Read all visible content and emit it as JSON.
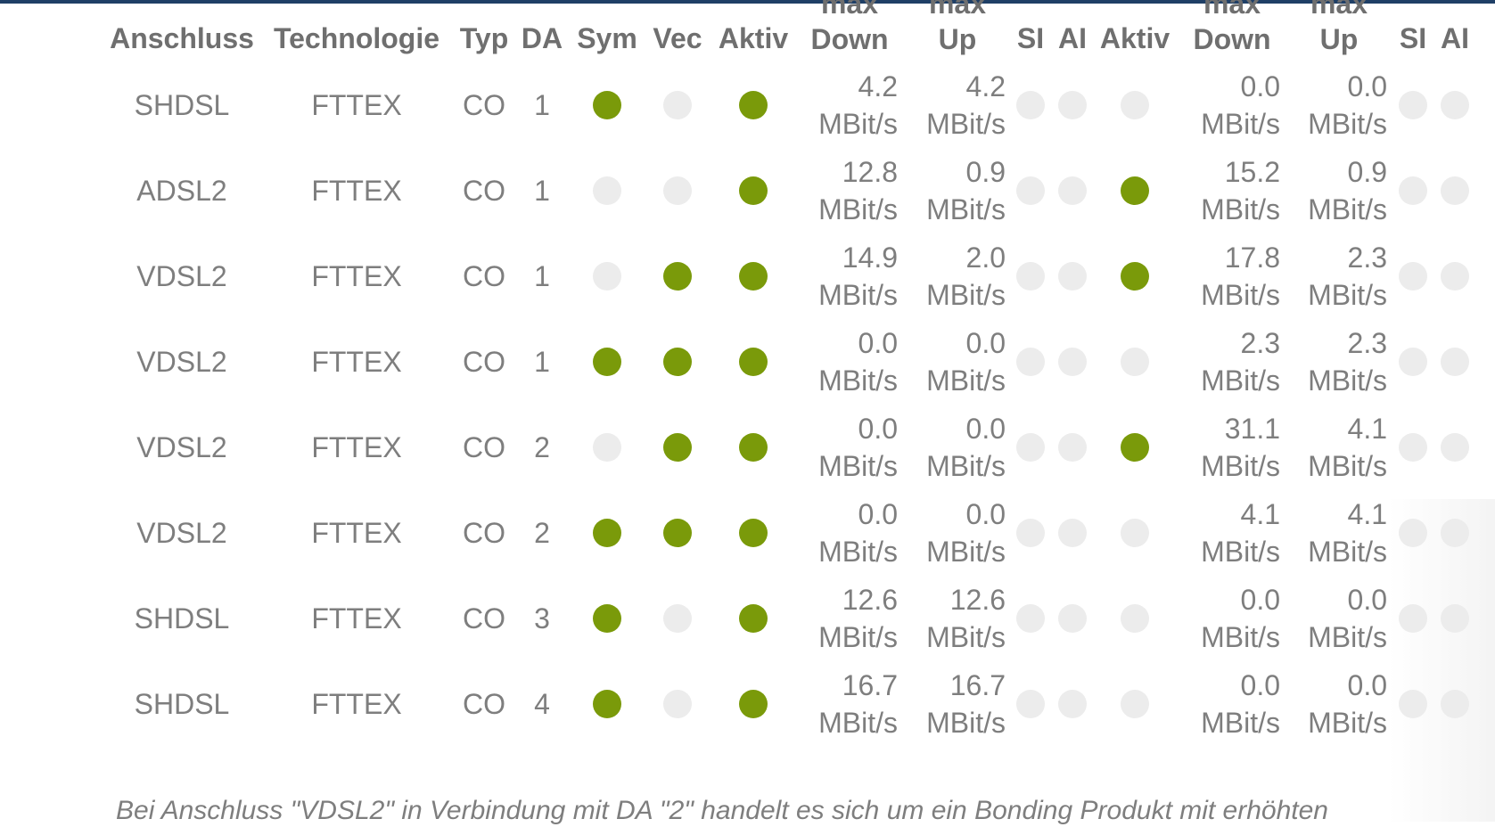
{
  "colors": {
    "active": "#7a9a0a",
    "inactive": "#ececec"
  },
  "headers": {
    "anschluss": "Anschluss",
    "technologie": "Technologie",
    "typ": "Typ",
    "da": "DA",
    "sym": "Sym",
    "vec": "Vec",
    "aktiv1": "Aktiv",
    "max_down1": [
      "max",
      "Down"
    ],
    "max_up1": [
      "max",
      "Up"
    ],
    "si1": "SI",
    "ai1": "AI",
    "aktiv2": "Aktiv",
    "max_down2": [
      "max",
      "Down"
    ],
    "max_up2": [
      "max",
      "Up"
    ],
    "si2": "SI",
    "ai2": "AI"
  },
  "rows": [
    {
      "anschluss": "SHDSL",
      "technologie": "FTTEX",
      "typ": "CO",
      "da": "1",
      "sym": true,
      "vec": false,
      "aktiv": true,
      "down1": "4.2",
      "up1": "4.2",
      "si1": false,
      "ai1": false,
      "aktiv2": false,
      "down2": "0.0",
      "up2": "0.0",
      "si2": false,
      "ai2": false
    },
    {
      "anschluss": "ADSL2",
      "technologie": "FTTEX",
      "typ": "CO",
      "da": "1",
      "sym": false,
      "vec": false,
      "aktiv": true,
      "down1": "12.8",
      "up1": "0.9",
      "si1": false,
      "ai1": false,
      "aktiv2": true,
      "down2": "15.2",
      "up2": "0.9",
      "si2": false,
      "ai2": false
    },
    {
      "anschluss": "VDSL2",
      "technologie": "FTTEX",
      "typ": "CO",
      "da": "1",
      "sym": false,
      "vec": true,
      "aktiv": true,
      "down1": "14.9",
      "up1": "2.0",
      "si1": false,
      "ai1": false,
      "aktiv2": true,
      "down2": "17.8",
      "up2": "2.3",
      "si2": false,
      "ai2": false
    },
    {
      "anschluss": "VDSL2",
      "technologie": "FTTEX",
      "typ": "CO",
      "da": "1",
      "sym": true,
      "vec": true,
      "aktiv": true,
      "down1": "0.0",
      "up1": "0.0",
      "si1": false,
      "ai1": false,
      "aktiv2": false,
      "down2": "2.3",
      "up2": "2.3",
      "si2": false,
      "ai2": false
    },
    {
      "anschluss": "VDSL2",
      "technologie": "FTTEX",
      "typ": "CO",
      "da": "2",
      "sym": false,
      "vec": true,
      "aktiv": true,
      "down1": "0.0",
      "up1": "0.0",
      "si1": false,
      "ai1": false,
      "aktiv2": true,
      "down2": "31.1",
      "up2": "4.1",
      "si2": false,
      "ai2": false
    },
    {
      "anschluss": "VDSL2",
      "technologie": "FTTEX",
      "typ": "CO",
      "da": "2",
      "sym": true,
      "vec": true,
      "aktiv": true,
      "down1": "0.0",
      "up1": "0.0",
      "si1": false,
      "ai1": false,
      "aktiv2": false,
      "down2": "4.1",
      "up2": "4.1",
      "si2": false,
      "ai2": false
    },
    {
      "anschluss": "SHDSL",
      "technologie": "FTTEX",
      "typ": "CO",
      "da": "3",
      "sym": true,
      "vec": false,
      "aktiv": true,
      "down1": "12.6",
      "up1": "12.6",
      "si1": false,
      "ai1": false,
      "aktiv2": false,
      "down2": "0.0",
      "up2": "0.0",
      "si2": false,
      "ai2": false
    },
    {
      "anschluss": "SHDSL",
      "technologie": "FTTEX",
      "typ": "CO",
      "da": "4",
      "sym": true,
      "vec": false,
      "aktiv": true,
      "down1": "16.7",
      "up1": "16.7",
      "si1": false,
      "ai1": false,
      "aktiv2": false,
      "down2": "0.0",
      "up2": "0.0",
      "si2": false,
      "ai2": false
    }
  ],
  "unit": "MBit/s",
  "footnote": "Bei Anschluss \"VDSL2\" in Verbindung mit DA \"2\" handelt es sich um ein Bonding Produkt mit erhöhten"
}
